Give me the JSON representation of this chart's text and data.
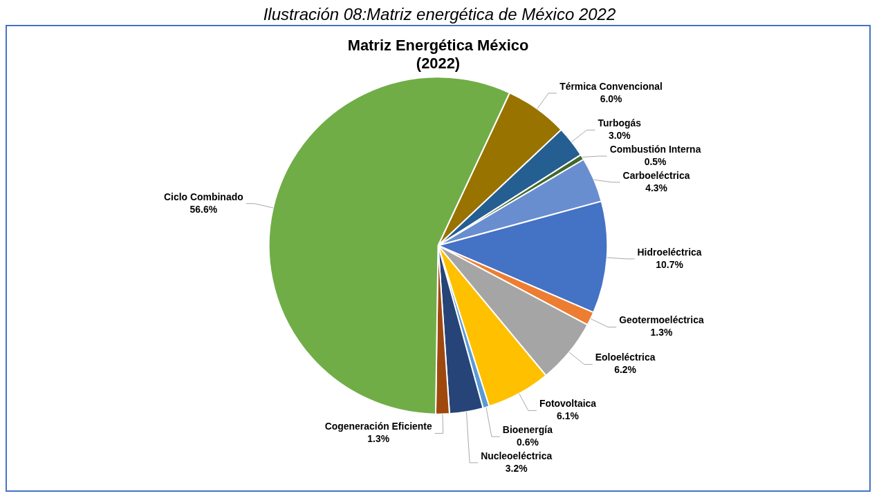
{
  "chart_data": {
    "type": "pie",
    "title": "Matriz Energética México",
    "subtitle": "(2022)",
    "annotations": [
      "Ilustración 08:Matriz energética de México 2022"
    ],
    "categories": [
      "Térmica Convencional",
      "Turbogás",
      "Combustión Interna",
      "Carboeléctrica",
      "Hidroeléctrica",
      "Geotermoeléctrica",
      "Eoloeléctrica",
      "Fotovoltaica",
      "Bioenergía",
      "Nucleoeléctrica",
      "Cogeneración Eficiente",
      "Ciclo Combinado"
    ],
    "values": [
      6.0,
      3.0,
      0.5,
      4.3,
      10.7,
      1.3,
      6.2,
      6.1,
      0.6,
      3.2,
      1.3,
      56.6
    ],
    "value_labels": [
      "6.0%",
      "3.0%",
      "0.5%",
      "4.3%",
      "10.7%",
      "1.3%",
      "6.2%",
      "6.1%",
      "0.6%",
      "3.2%",
      "1.3%",
      "56.6%"
    ],
    "colors": [
      "#987300",
      "#255e91",
      "#43682b",
      "#698ed0",
      "#4472c4",
      "#ed7d31",
      "#a5a5a5",
      "#ffc000",
      "#5b9bd5",
      "#264478",
      "#9e480e",
      "#70ad47"
    ],
    "legend": false
  }
}
